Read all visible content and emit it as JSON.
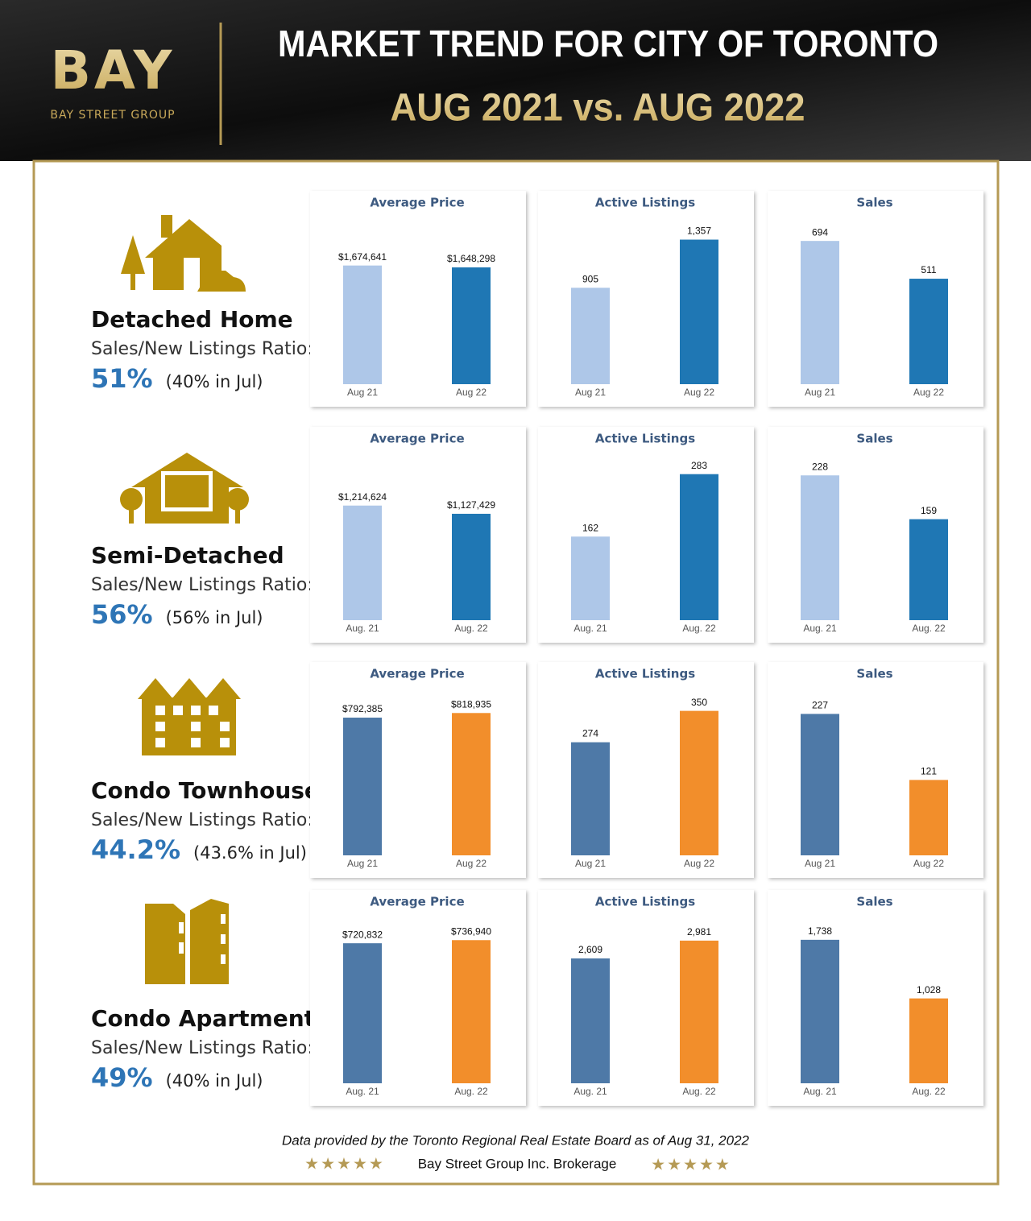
{
  "header": {
    "logo": "BAY",
    "logo_sub": "BAY STREET GROUP",
    "title": "MARKET TREND FOR CITY OF TORONTO",
    "subtitle": "AUG 2021 vs. AUG 2022"
  },
  "sections": [
    {
      "name": "Detached Home",
      "ratio_label": "Sales/New Listings Ratio:",
      "ratio": "51%",
      "previous": "(40% in Jul)"
    },
    {
      "name": "Semi-Detached",
      "ratio_label": "Sales/New Listings Ratio:",
      "ratio": "56%",
      "previous": "(56% in Jul)"
    },
    {
      "name": "Condo Townhouse",
      "ratio_label": "Sales/New Listings Ratio:",
      "ratio": "44.2%",
      "previous": "(43.6% in Jul)"
    },
    {
      "name": "Condo Apartment",
      "ratio_label": "Sales/New Listings Ratio:",
      "ratio": "49%",
      "previous": "(40% in Jul)"
    }
  ],
  "chart_data": [
    {
      "type": "bar",
      "title": "Average Price",
      "categories": [
        "Aug 21",
        "Aug 22"
      ],
      "values": [
        1674641,
        1648298
      ],
      "value_labels": [
        "$1,674,641",
        "$1,648,298"
      ],
      "colors": [
        "#aec7e8",
        "#1f77b4"
      ],
      "ylim": [
        0,
        2330000
      ]
    },
    {
      "type": "bar",
      "title": "Active Listings",
      "categories": [
        "Aug 21",
        "Aug 22"
      ],
      "values": [
        905,
        1357
      ],
      "value_labels": [
        "905",
        "1,357"
      ],
      "colors": [
        "#aec7e8",
        "#1f77b4"
      ],
      "ylim": [
        0,
        1550
      ]
    },
    {
      "type": "bar",
      "title": "Sales",
      "categories": [
        "Aug 21",
        "Aug 22"
      ],
      "values": [
        694,
        511
      ],
      "colors": [
        "#aec7e8",
        "#1f77b4"
      ],
      "ylim": [
        0,
        800
      ]
    },
    {
      "type": "bar",
      "title": "Average Price",
      "categories": [
        "Aug. 21",
        "Aug. 22"
      ],
      "values": [
        1214624,
        1127429
      ],
      "value_labels": [
        "$1,214,624",
        "$1,127,429"
      ],
      "colors": [
        "#aec7e8",
        "#1f77b4"
      ],
      "ylim": [
        0,
        1750000
      ]
    },
    {
      "type": "bar",
      "title": "Active Listings",
      "categories": [
        "Aug. 21",
        "Aug. 22"
      ],
      "values": [
        162,
        283
      ],
      "colors": [
        "#aec7e8",
        "#1f77b4"
      ],
      "ylim": [
        0,
        320
      ]
    },
    {
      "type": "bar",
      "title": "Sales",
      "categories": [
        "Aug. 21",
        "Aug. 22"
      ],
      "values": [
        228,
        159
      ],
      "colors": [
        "#aec7e8",
        "#1f77b4"
      ],
      "ylim": [
        0,
        260
      ]
    },
    {
      "type": "bar",
      "title": "Average Price",
      "categories": [
        "Aug 21",
        "Aug 22"
      ],
      "values": [
        792385,
        818935
      ],
      "value_labels": [
        "$792,385",
        "$818,935"
      ],
      "colors": [
        "#4e79a7",
        "#f28e2b"
      ],
      "ylim": [
        0,
        950000
      ]
    },
    {
      "type": "bar",
      "title": "Active Listings",
      "categories": [
        "Aug 21",
        "Aug 22"
      ],
      "values": [
        274,
        350
      ],
      "colors": [
        "#4e79a7",
        "#f28e2b"
      ],
      "ylim": [
        0,
        400
      ]
    },
    {
      "type": "bar",
      "title": "Sales",
      "categories": [
        "Aug 21",
        "Aug 22"
      ],
      "values": [
        227,
        121
      ],
      "colors": [
        "#4e79a7",
        "#f28e2b"
      ],
      "ylim": [
        0,
        265
      ]
    },
    {
      "type": "bar",
      "title": "Average Price",
      "categories": [
        "Aug. 21",
        "Aug. 22"
      ],
      "values": [
        720832,
        736940
      ],
      "value_labels": [
        "$720,832",
        "$736,940"
      ],
      "colors": [
        "#4e79a7",
        "#f28e2b"
      ],
      "ylim": [
        0,
        850000
      ]
    },
    {
      "type": "bar",
      "title": "Active Listings",
      "categories": [
        "Aug. 21",
        "Aug. 22"
      ],
      "values": [
        2609,
        2981
      ],
      "value_labels": [
        "2,609",
        "2,981"
      ],
      "colors": [
        "#4e79a7",
        "#f28e2b"
      ],
      "ylim": [
        0,
        3450
      ]
    },
    {
      "type": "bar",
      "title": "Sales",
      "categories": [
        "Aug. 21",
        "Aug. 22"
      ],
      "values": [
        1738,
        1028
      ],
      "value_labels": [
        "1,738",
        "1,028"
      ],
      "colors": [
        "#4e79a7",
        "#f28e2b"
      ],
      "ylim": [
        0,
        2000
      ]
    }
  ],
  "footer": {
    "source": "Data provided by the Toronto Regional Real Estate Board as of Aug 31, 2022",
    "brokerage": "Bay Street Group Inc. Brokerage",
    "stars": "★★★★★"
  }
}
